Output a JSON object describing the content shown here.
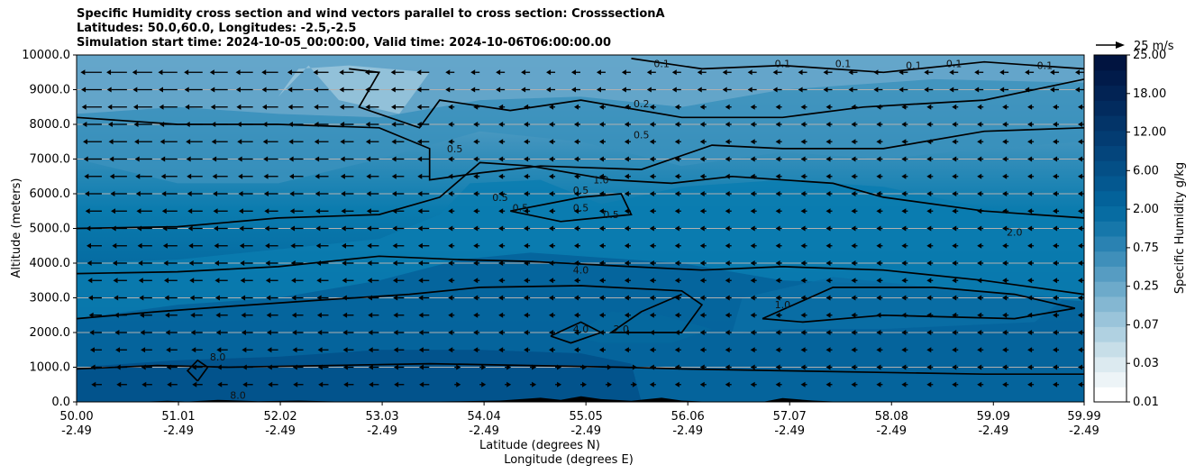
{
  "chart_data": {
    "type": "heatmap",
    "title_lines": [
      "Specific Humidity cross section and wind vectors parallel to cross section: CrosssectionA",
      "Latitudes: 50.0,60.0, Longitudes: -2.5,-2.5",
      "Simulation start time: 2024-10-05_00:00:00, Valid time: 2024-10-06T06:00:00.00"
    ],
    "ylabel": "Altitude (meters)",
    "xlabel_lat": "Latitude (degrees N)",
    "xlabel_lon": "Longitude (degrees E)",
    "ylim": [
      0,
      10000
    ],
    "y_ticks": [
      0,
      1000,
      2000,
      3000,
      4000,
      5000,
      6000,
      7000,
      8000,
      9000,
      10000
    ],
    "y_tick_labels": [
      "0.0",
      "1000.0",
      "2000.0",
      "3000.0",
      "4000.0",
      "5000.0",
      "6000.0",
      "7000.0",
      "8000.0",
      "9000.0",
      "10000.0"
    ],
    "x_tick_lat": [
      "50.00",
      "51.01",
      "52.02",
      "53.03",
      "54.04",
      "55.05",
      "56.06",
      "57.07",
      "58.08",
      "59.09",
      "59.99"
    ],
    "x_tick_lon": [
      "-2.49",
      "-2.49",
      "-2.49",
      "-2.49",
      "-2.49",
      "-2.49",
      "-2.49",
      "-2.49",
      "-2.49",
      "-2.49",
      "-2.49"
    ],
    "grid": "horizontal",
    "colorbar": {
      "label": "Specific Humidity g/kg",
      "tick_labels": [
        "0.01",
        "0.03",
        "0.07",
        "0.25",
        "0.75",
        "2.00",
        "6.00",
        "12.00",
        "18.00",
        "25.00"
      ]
    },
    "quiver_key": "25 m/s",
    "contour_labels": [
      {
        "text": "0.1",
        "lat": 55.8,
        "alt": 9750
      },
      {
        "text": "0.1",
        "lat": 57.0,
        "alt": 9750
      },
      {
        "text": "0.1",
        "lat": 57.6,
        "alt": 9750
      },
      {
        "text": "0.1",
        "lat": 58.3,
        "alt": 9700
      },
      {
        "text": "0.1",
        "lat": 58.7,
        "alt": 9750
      },
      {
        "text": "0.1",
        "lat": 59.6,
        "alt": 9700
      },
      {
        "text": "0.2",
        "lat": 55.6,
        "alt": 8600
      },
      {
        "text": "0.5",
        "lat": 53.75,
        "alt": 7300
      },
      {
        "text": "0.5",
        "lat": 55.6,
        "alt": 7700
      },
      {
        "text": "1.0",
        "lat": 55.2,
        "alt": 6400
      },
      {
        "text": "0.5",
        "lat": 54.2,
        "alt": 5900
      },
      {
        "text": "0.5",
        "lat": 54.4,
        "alt": 5600
      },
      {
        "text": "0.5",
        "lat": 55.0,
        "alt": 6100
      },
      {
        "text": "0.5",
        "lat": 55.0,
        "alt": 5600
      },
      {
        "text": "0.5",
        "lat": 55.3,
        "alt": 5400
      },
      {
        "text": "2.0",
        "lat": 59.3,
        "alt": 4900
      },
      {
        "text": "4.0",
        "lat": 55.0,
        "alt": 3800
      },
      {
        "text": "1.0",
        "lat": 57.0,
        "alt": 2800
      },
      {
        "text": "2.0",
        "lat": 55.4,
        "alt": 2100
      },
      {
        "text": "4.0",
        "lat": 55.0,
        "alt": 2100
      },
      {
        "text": "8.0",
        "lat": 51.4,
        "alt": 1300
      },
      {
        "text": "8.0",
        "lat": 51.6,
        "alt": 200
      }
    ]
  }
}
